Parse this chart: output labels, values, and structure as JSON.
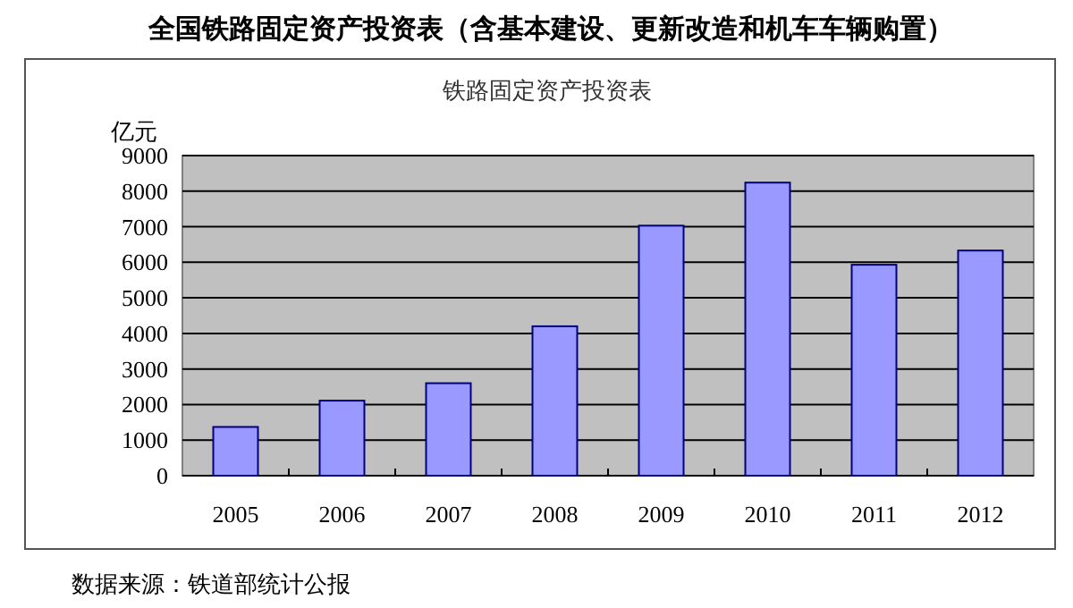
{
  "chart_data": {
    "type": "bar",
    "title": "全国铁路固定资产投资表（含基本建设、更新改造和机车车辆购置）",
    "subtitle": "铁路固定资产投资表",
    "ylabel": "亿元",
    "categories": [
      "2005",
      "2006",
      "2007",
      "2008",
      "2009",
      "2010",
      "2011",
      "2012"
    ],
    "values": [
      1370,
      2110,
      2600,
      4200,
      7030,
      8240,
      5930,
      6330
    ],
    "color": "#9999ff",
    "ylim": [
      0,
      9000
    ],
    "yticks": [
      0,
      1000,
      2000,
      3000,
      4000,
      5000,
      6000,
      7000,
      8000,
      9000
    ],
    "grid": "y",
    "annotations": [
      "数据来源：铁道部统计公报"
    ]
  }
}
